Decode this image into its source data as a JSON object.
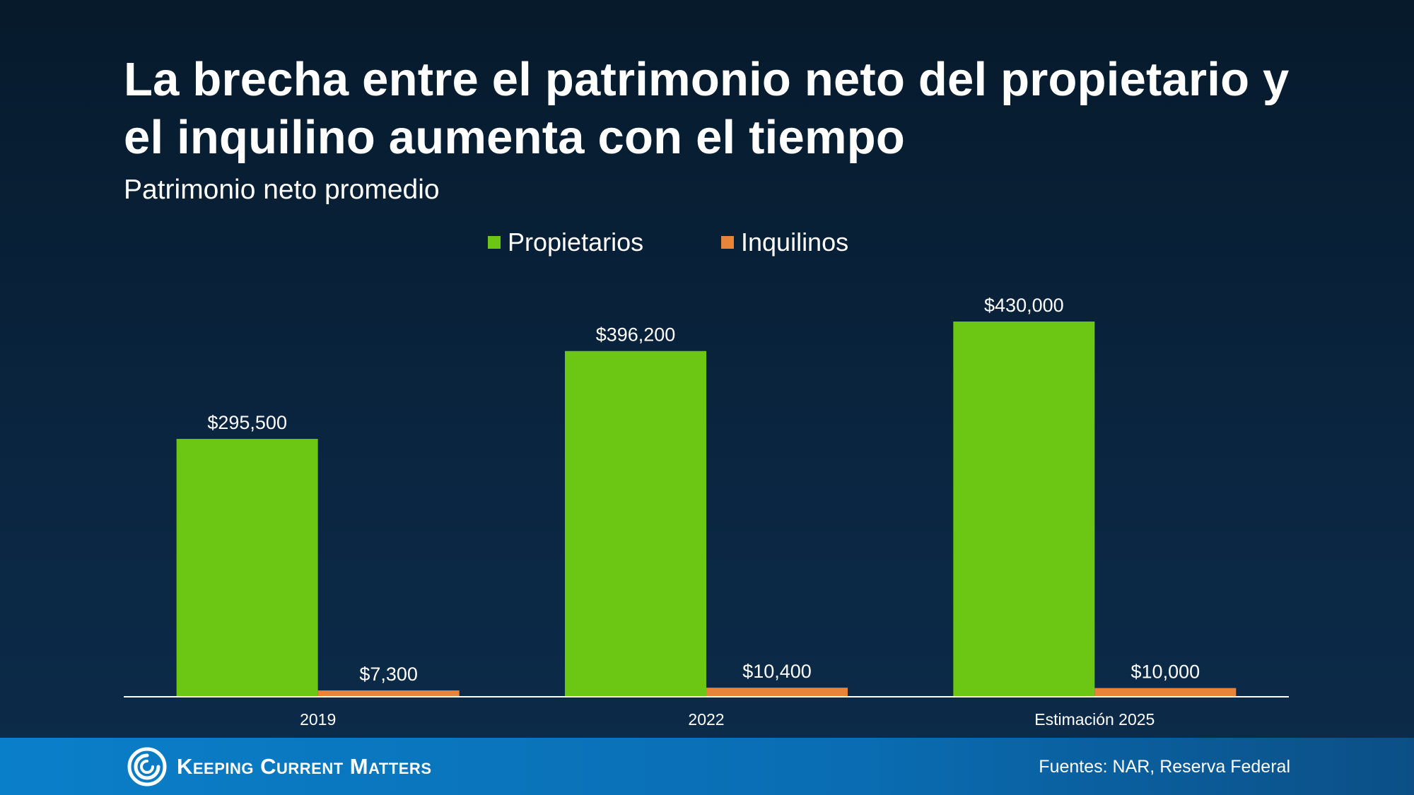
{
  "header": {
    "title": "La brecha entre el patrimonio neto del propietario y el inquilino aumenta con el tiempo",
    "subtitle": "Patrimonio neto promedio"
  },
  "footer": {
    "brand": "Keeping Current Matters",
    "sources": "Fuentes: NAR, Reserva Federal"
  },
  "colors": {
    "propietarios": "#6cc714",
    "inquilinos": "#e8843a",
    "axis": "#ffffff"
  },
  "chart_data": {
    "type": "bar",
    "categories": [
      "2019",
      "2022",
      "Estimación 2025"
    ],
    "series": [
      {
        "name": "Propietarios",
        "values": [
          295500,
          396200,
          430000
        ],
        "labels": [
          "$295,500",
          "$396,200",
          "$430,000"
        ]
      },
      {
        "name": "Inquilinos",
        "values": [
          7300,
          10400,
          10000
        ],
        "labels": [
          "$7,300",
          "$10,400",
          "$10,000"
        ]
      }
    ],
    "title": "La brecha entre el patrimonio neto del propietario y el inquilino aumenta con el tiempo",
    "subtitle": "Patrimonio neto promedio",
    "legend": "top-center",
    "grid": false,
    "ylim": [
      0,
      430000
    ]
  }
}
